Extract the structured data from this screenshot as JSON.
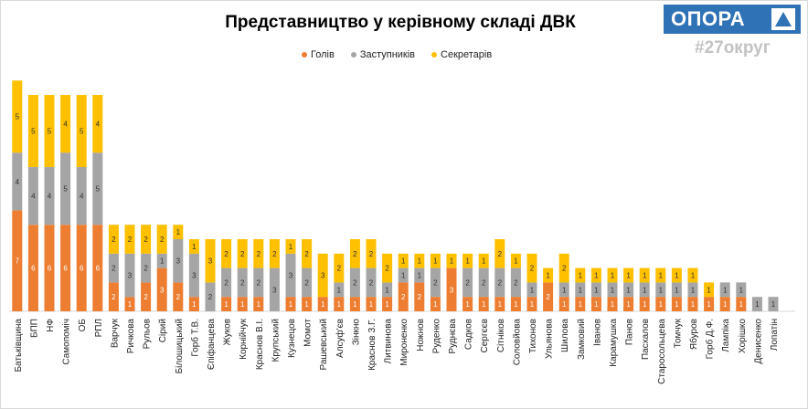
{
  "chart_data": {
    "type": "bar",
    "stacked": true,
    "title": "Представництво у керівному складі ДВК",
    "legend_position": "top-center",
    "categories": [
      "Батьківщина",
      "БПП",
      "НФ",
      "Самопоміч",
      "ОБ",
      "РПЛ",
      "Варчук",
      "Ричкова",
      "Рульов",
      "Сірий",
      "Білошицький",
      "Горб Т.В.",
      "Єпіфанцева",
      "Жуков",
      "Корнійчук",
      "Краснов В.І.",
      "Крупський",
      "Кузнецов",
      "Момот",
      "Рашевський",
      "Алсуф'єв",
      "Зінкно",
      "Краснов З.Г.",
      "Литвинова",
      "Мироненко",
      "Ножнов",
      "Руденко",
      "Руднєва",
      "Садков",
      "Сергєєв",
      "Сітніков",
      "Соловйова",
      "Тихонов",
      "Ульянова",
      "Шилова",
      "Замковий",
      "Іванов",
      "Карамушка",
      "Панов",
      "Пасхалов",
      "Старосольцева",
      "Томчук",
      "Ябуров",
      "Горб Д.Ф.",
      "Лампіка",
      "Хорішко",
      "Денисенко",
      "Лопатін"
    ],
    "series": [
      {
        "name": "Голів",
        "color": "#ed7d31",
        "values": [
          7,
          6,
          6,
          6,
          6,
          6,
          2,
          1,
          2,
          3,
          2,
          1,
          0,
          1,
          1,
          1,
          0,
          1,
          1,
          1,
          1,
          1,
          1,
          1,
          2,
          2,
          1,
          3,
          1,
          1,
          1,
          1,
          1,
          2,
          1,
          1,
          1,
          1,
          1,
          1,
          1,
          1,
          1,
          1,
          1,
          1,
          0,
          0
        ]
      },
      {
        "name": "Заступників",
        "color": "#a5a5a5",
        "values": [
          4,
          4,
          4,
          5,
          4,
          5,
          2,
          3,
          2,
          1,
          3,
          3,
          2,
          2,
          2,
          2,
          3,
          3,
          2,
          0,
          1,
          2,
          2,
          1,
          1,
          1,
          2,
          0,
          2,
          2,
          2,
          2,
          1,
          0,
          1,
          1,
          1,
          1,
          1,
          1,
          1,
          1,
          1,
          0,
          1,
          1,
          1,
          1
        ]
      },
      {
        "name": "Секретарів",
        "color": "#ffc000",
        "values": [
          5,
          5,
          5,
          4,
          5,
          4,
          2,
          2,
          2,
          2,
          1,
          1,
          3,
          2,
          2,
          2,
          2,
          1,
          2,
          3,
          2,
          2,
          2,
          2,
          1,
          1,
          1,
          1,
          1,
          1,
          2,
          1,
          2,
          1,
          2,
          1,
          1,
          1,
          1,
          1,
          1,
          1,
          1,
          1,
          0,
          0,
          0,
          0
        ]
      }
    ],
    "ylim": [
      0,
      16
    ],
    "xlabel": "",
    "ylabel": ""
  },
  "branding": {
    "logo_text": "ОПОРА",
    "hashtag": "#27округ"
  }
}
